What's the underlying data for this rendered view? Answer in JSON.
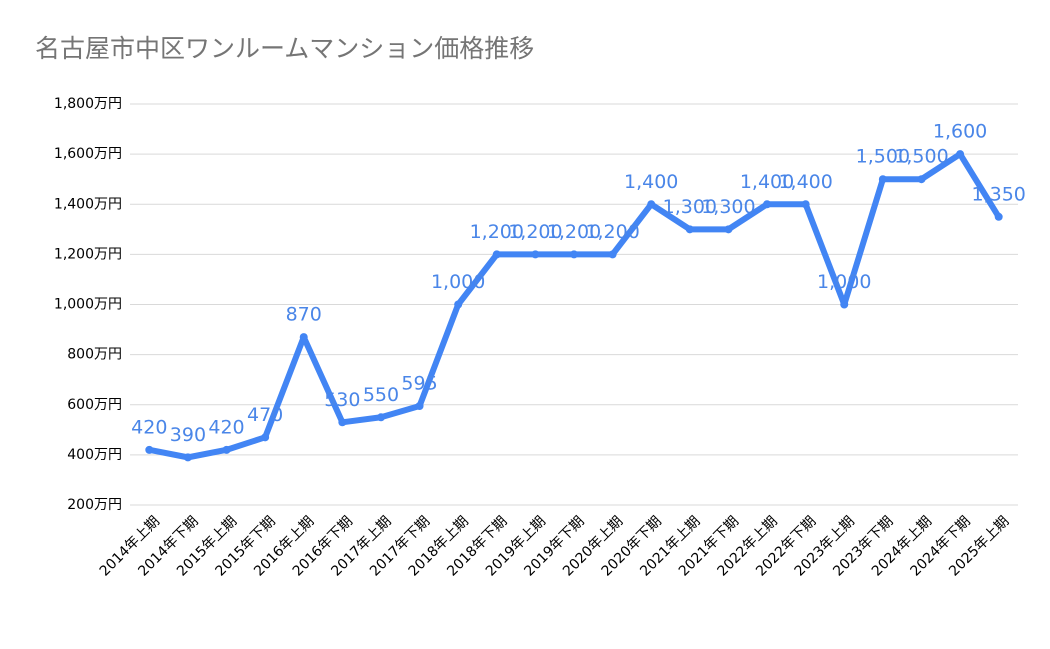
{
  "chart_data": {
    "type": "line",
    "title": "名古屋市中区ワンルームマンション価格推移",
    "categories": [
      "2014年上期",
      "2014年下期",
      "2015年上期",
      "2015年下期",
      "2016年上期",
      "2016年下期",
      "2017年上期",
      "2017年下期",
      "2018年上期",
      "2018年下期",
      "2019年上期",
      "2019年下期",
      "2020年上期",
      "2020年下期",
      "2021年上期",
      "2021年下期",
      "2022年上期",
      "2022年下期",
      "2023年上期",
      "2023年下期",
      "2024年上期",
      "2024年下期",
      "2025年上期"
    ],
    "values": [
      420,
      390,
      420,
      470,
      870,
      530,
      550,
      595,
      1000,
      1200,
      1200,
      1200,
      1200,
      1400,
      1300,
      1300,
      1400,
      1400,
      1000,
      1500,
      1500,
      1600,
      1350
    ],
    "value_labels": [
      "420",
      "390",
      "420",
      "470",
      "870",
      "530",
      "550",
      "595",
      "1,000",
      "1,200",
      "1,200",
      "1,200",
      "1,200",
      "1,400",
      "1,300",
      "1,300",
      "1,400",
      "1,400",
      "1,000",
      "1,500",
      "1,500",
      "1,600",
      "1,350"
    ],
    "color": "#4285f4",
    "ylim": [
      200,
      1800
    ],
    "yticks": [
      {
        "value": 200,
        "label": "200万円"
      },
      {
        "value": 400,
        "label": "400万円"
      },
      {
        "value": 600,
        "label": "600万円"
      },
      {
        "value": 800,
        "label": "800万円"
      },
      {
        "value": 1000,
        "label": "1,000万円"
      },
      {
        "value": 1200,
        "label": "1,200万円"
      },
      {
        "value": 1400,
        "label": "1,400万円"
      },
      {
        "value": 1600,
        "label": "1,600万円"
      },
      {
        "value": 1800,
        "label": "1,800万円"
      }
    ],
    "grid": true
  }
}
